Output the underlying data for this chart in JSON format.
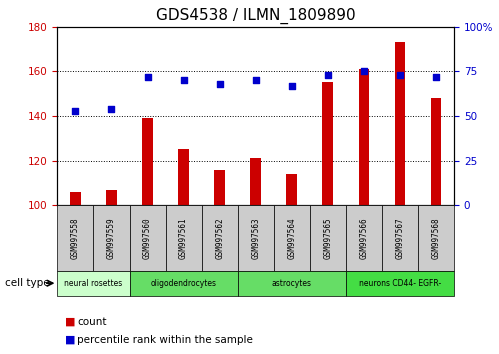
{
  "title": "GDS4538 / ILMN_1809890",
  "samples": [
    "GSM997558",
    "GSM997559",
    "GSM997560",
    "GSM997561",
    "GSM997562",
    "GSM997563",
    "GSM997564",
    "GSM997565",
    "GSM997566",
    "GSM997567",
    "GSM997568"
  ],
  "counts": [
    106,
    107,
    139,
    125,
    116,
    121,
    114,
    155,
    161,
    173,
    148
  ],
  "percentiles": [
    53,
    54,
    72,
    70,
    68,
    70,
    67,
    73,
    75,
    73,
    72
  ],
  "ylim_left": [
    100,
    180
  ],
  "ylim_right": [
    0,
    100
  ],
  "yticks_left": [
    100,
    120,
    140,
    160,
    180
  ],
  "yticks_right": [
    0,
    25,
    50,
    75,
    100
  ],
  "yticklabels_right": [
    "0",
    "25",
    "50",
    "75",
    "100%"
  ],
  "bar_color": "#cc0000",
  "scatter_color": "#0000cc",
  "bar_bottom": 100,
  "bar_width": 0.3,
  "cell_types": [
    {
      "label": "neural rosettes",
      "start": 0,
      "end": 1,
      "color": "#ccffcc"
    },
    {
      "label": "oligodendrocytes",
      "start": 2,
      "end": 4,
      "color": "#66dd66"
    },
    {
      "label": "astrocytes",
      "start": 5,
      "end": 7,
      "color": "#66dd66"
    },
    {
      "label": "neurons CD44- EGFR-",
      "start": 8,
      "end": 10,
      "color": "#44dd44"
    }
  ],
  "cell_type_label": "cell type",
  "legend_count_label": "count",
  "legend_percentile_label": "percentile rank within the sample",
  "title_fontsize": 11,
  "axis_label_color_left": "#cc0000",
  "axis_label_color_right": "#0000cc",
  "grid_color": "#000000",
  "sample_box_color": "#cccccc",
  "ct_light_green": "#ccffcc",
  "ct_med_green": "#66dd66",
  "ct_bright_green": "#44dd44"
}
